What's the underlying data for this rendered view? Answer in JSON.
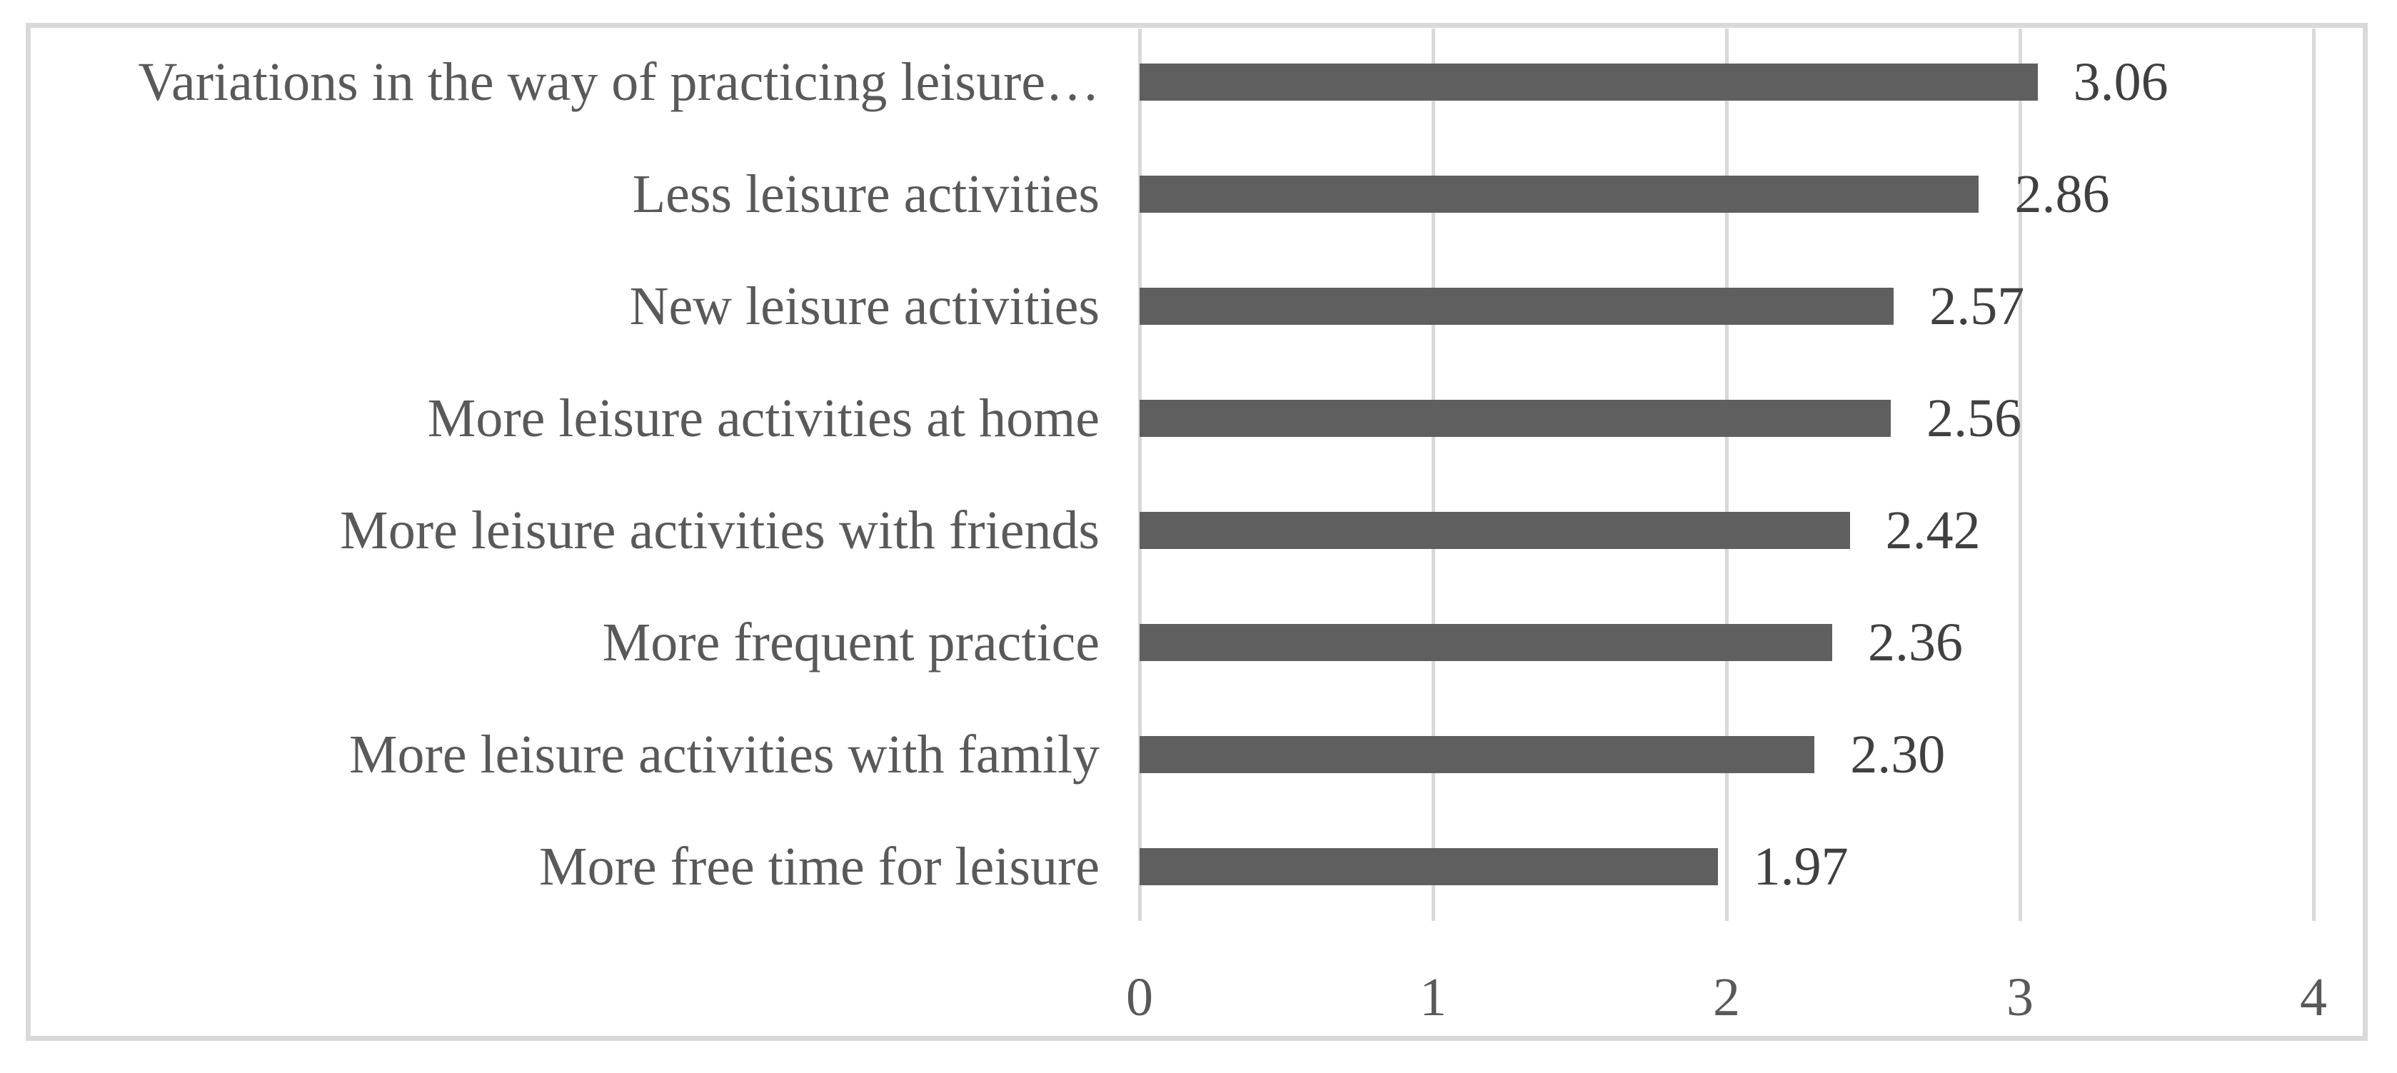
{
  "chart_data": {
    "type": "bar",
    "orientation": "horizontal",
    "title": "",
    "categories": [
      "Variations in the way of practicing leisure…",
      "Less leisure activities",
      "New leisure activities",
      "More leisure activities at home",
      "More leisure activities with friends",
      "More frequent practice",
      "More leisure activities with family",
      "More free time for leisure"
    ],
    "values": [
      3.06,
      2.86,
      2.57,
      2.56,
      2.42,
      2.36,
      2.3,
      1.97
    ],
    "value_labels": [
      "3.06",
      "2.86",
      "2.57",
      "2.56",
      "2.42",
      "2.36",
      "2.30",
      "1.97"
    ],
    "x_ticks": [
      0,
      1,
      2,
      3,
      4
    ],
    "x_tick_labels": [
      "0",
      "1",
      "2",
      "3",
      "4"
    ],
    "xlim": [
      0,
      4
    ],
    "grid": "vertical-gridlines-only",
    "legend": "none",
    "data_labels": "outside-end",
    "colors": {
      "bar": "#5f5f5f",
      "gridline": "#d9d9d9",
      "frame_border": "#d9d9d9",
      "category_label": "#595959",
      "value_label": "#404040",
      "tick_label": "#595959",
      "background": "#ffffff"
    }
  }
}
